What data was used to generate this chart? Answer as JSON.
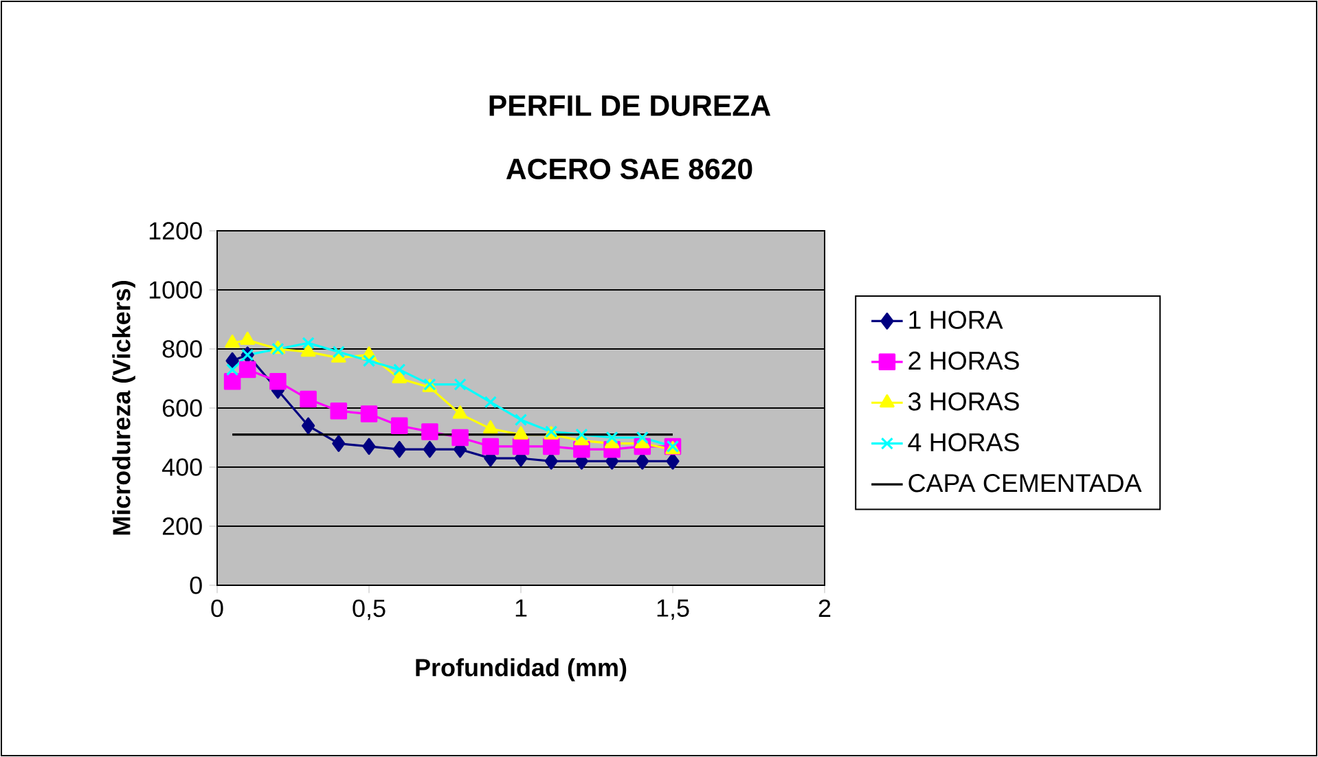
{
  "chart_data": {
    "type": "line",
    "title": "PERFIL DE DUREZA",
    "subtitle": "ACERO SAE 8620",
    "xlabel": "Profundidad (mm)",
    "ylabel": "Microdureza (Vickers)",
    "xlim": [
      0,
      2
    ],
    "ylim": [
      0,
      1200
    ],
    "xticks": [
      0,
      {
        "value": 0.5,
        "label": "0,5"
      },
      1,
      {
        "value": 1.5,
        "label": "1,5"
      },
      2
    ],
    "yticks": [
      0,
      200,
      400,
      600,
      800,
      1000,
      1200
    ],
    "grid": "y",
    "legend": "right",
    "x": [
      0.05,
      0.1,
      0.2,
      0.3,
      0.4,
      0.5,
      0.6,
      0.7,
      0.8,
      0.9,
      1.0,
      1.1,
      1.2,
      1.3,
      1.4,
      1.5
    ],
    "series": [
      {
        "name": "1 HORA",
        "color": "#000080",
        "marker": "diamond",
        "values": [
          760,
          780,
          660,
          540,
          480,
          470,
          460,
          460,
          460,
          430,
          430,
          420,
          420,
          420,
          420,
          420
        ]
      },
      {
        "name": "2 HORAS",
        "color": "#ff00ff",
        "marker": "square",
        "values": [
          690,
          730,
          690,
          630,
          590,
          580,
          540,
          520,
          500,
          470,
          470,
          470,
          460,
          460,
          470,
          470
        ]
      },
      {
        "name": "3 HORAS",
        "color": "#ffff00",
        "marker": "triangle",
        "values": [
          820,
          830,
          800,
          790,
          770,
          780,
          700,
          670,
          580,
          530,
          510,
          510,
          490,
          480,
          480,
          460
        ]
      },
      {
        "name": "4 HORAS",
        "color": "#00ffff",
        "marker": "cross",
        "values": [
          730,
          780,
          800,
          820,
          790,
          760,
          730,
          680,
          680,
          620,
          560,
          520,
          510,
          500,
          500,
          470
        ]
      },
      {
        "name": "CAPA CEMENTADA",
        "color": "#000000",
        "marker": "none",
        "x": [
          0.05,
          1.5
        ],
        "values": [
          510,
          510
        ]
      }
    ]
  }
}
